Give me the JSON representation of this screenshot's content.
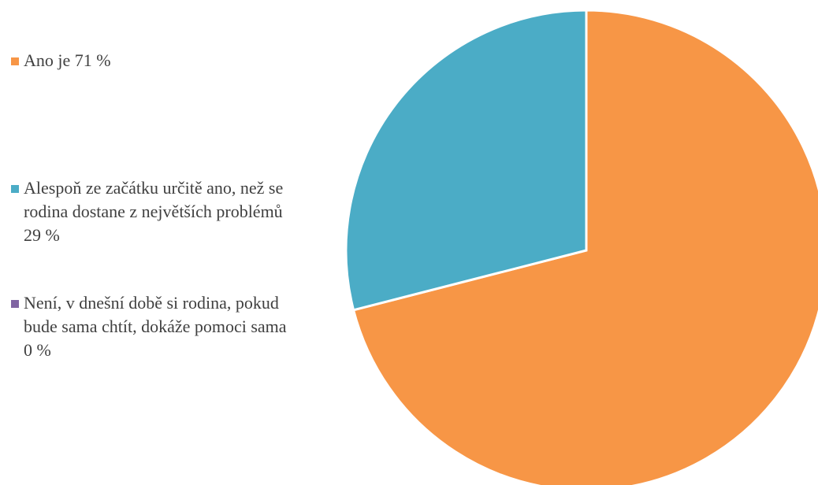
{
  "chart_data": {
    "type": "pie",
    "categories": [
      "Ano je  71 %",
      "Alespoň ze začátku určitě ano, než se rodina dostane z největších problémů  29 %",
      "Není, v dnešní době si rodina, pokud bude sama chtít, dokáže pomoci sama 0 %"
    ],
    "values": [
      71,
      29,
      0
    ],
    "colors": [
      "#f79646",
      "#4bacc6",
      "#8064a2"
    ],
    "legend": "left"
  }
}
